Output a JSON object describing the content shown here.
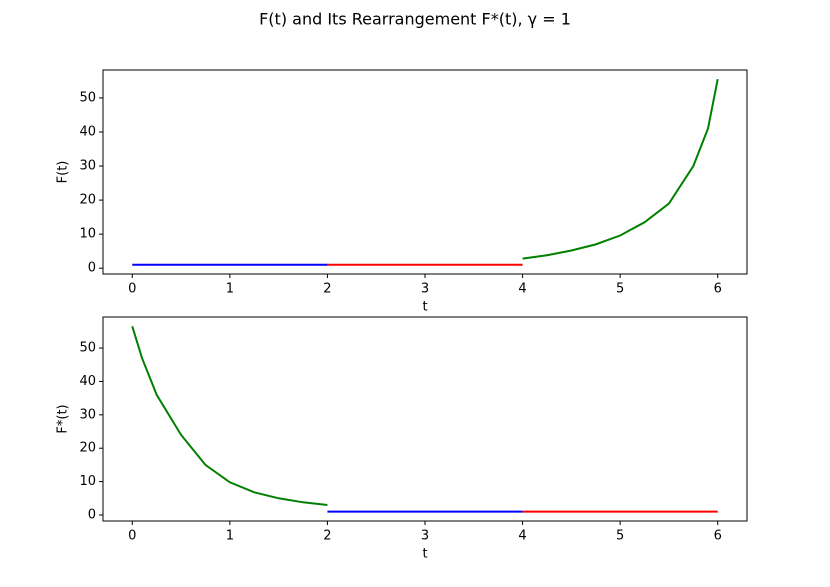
{
  "title": "F(t) and Its Rearrangement F*(t), γ = 1",
  "chart_data": [
    {
      "type": "line",
      "xlabel": "t",
      "ylabel": "F(t)",
      "xlim": [
        -0.3,
        6.3
      ],
      "ylim": [
        -1.7,
        58.2
      ],
      "xticks": [
        0,
        1,
        2,
        3,
        4,
        5,
        6
      ],
      "yticks": [
        0,
        10,
        20,
        30,
        40,
        50
      ],
      "series": [
        {
          "color": "#0000ff",
          "x": [
            0,
            2
          ],
          "values": [
            1,
            1
          ]
        },
        {
          "color": "#ff0000",
          "x": [
            2,
            4
          ],
          "values": [
            1,
            1
          ]
        },
        {
          "color": "#008000",
          "x": [
            4,
            4.25,
            4.5,
            4.75,
            5,
            5.25,
            5.5,
            5.75,
            5.9,
            6
          ],
          "values": [
            2.8,
            3.8,
            5.2,
            7,
            9.6,
            13.5,
            19,
            30,
            41,
            55.5
          ]
        }
      ]
    },
    {
      "type": "line",
      "xlabel": "t",
      "ylabel": "F*(t)",
      "xlim": [
        -0.3,
        6.3
      ],
      "ylim": [
        -1.8,
        59.3
      ],
      "xticks": [
        0,
        1,
        2,
        3,
        4,
        5,
        6
      ],
      "yticks": [
        0,
        10,
        20,
        30,
        40,
        50
      ],
      "series": [
        {
          "color": "#008000",
          "x": [
            0,
            0.1,
            0.25,
            0.5,
            0.75,
            1,
            1.25,
            1.5,
            1.75,
            2
          ],
          "values": [
            56.5,
            47,
            36,
            24,
            15,
            9.8,
            6.8,
            5,
            3.8,
            3
          ]
        },
        {
          "color": "#0000ff",
          "x": [
            2,
            4
          ],
          "values": [
            1,
            1
          ]
        },
        {
          "color": "#ff0000",
          "x": [
            4,
            6
          ],
          "values": [
            1,
            1
          ]
        }
      ]
    }
  ]
}
